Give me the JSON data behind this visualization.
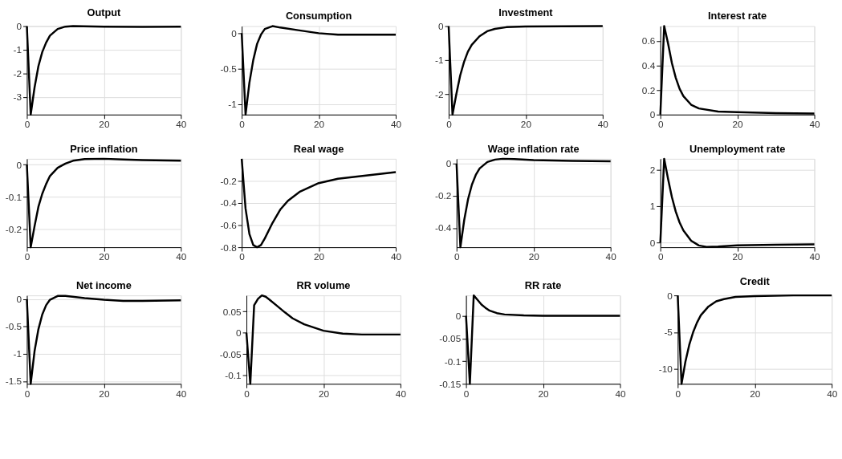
{
  "chart_data": [
    {
      "type": "line",
      "title": "Output",
      "x": [
        0,
        1,
        2,
        3,
        4,
        5,
        6,
        8,
        10,
        12,
        20,
        30,
        40
      ],
      "series": [
        {
          "color": "#000000",
          "values": [
            0,
            -3.75,
            -2.6,
            -1.7,
            -1.1,
            -0.7,
            -0.4,
            -0.12,
            -0.02,
            0,
            -0.02,
            -0.03,
            -0.02
          ]
        }
      ],
      "xlim": [
        0,
        40
      ],
      "xticks": [
        0,
        20,
        40
      ],
      "ylim": [
        -3.75,
        0
      ],
      "yticks": [
        -3,
        -2,
        -1,
        0
      ],
      "grid": true
    },
    {
      "type": "line",
      "title": "Consumption",
      "x": [
        0,
        1,
        2,
        3,
        4,
        5,
        6,
        8,
        10,
        15,
        20,
        25,
        30,
        40
      ],
      "series": [
        {
          "color": "#000000",
          "values": [
            0,
            -1.15,
            -0.7,
            -0.38,
            -0.15,
            -0.02,
            0.06,
            0.1,
            0.08,
            0.04,
            0.0,
            -0.02,
            -0.02,
            -0.02
          ]
        }
      ],
      "xlim": [
        0,
        40
      ],
      "xticks": [
        0,
        20,
        40
      ],
      "ylim": [
        -1.15,
        0.1
      ],
      "yticks": [
        -1,
        -0.5,
        0
      ],
      "grid": true
    },
    {
      "type": "line",
      "title": "Investment",
      "x": [
        0,
        1,
        2,
        3,
        4,
        5,
        6,
        8,
        10,
        12,
        15,
        20,
        40
      ],
      "series": [
        {
          "color": "#000000",
          "values": [
            0,
            -2.6,
            -2.0,
            -1.45,
            -1.05,
            -0.75,
            -0.55,
            -0.3,
            -0.15,
            -0.08,
            -0.03,
            -0.01,
            0
          ]
        }
      ],
      "xlim": [
        0,
        40
      ],
      "xticks": [
        0,
        20,
        40
      ],
      "ylim": [
        -2.6,
        0
      ],
      "yticks": [
        -2,
        -1,
        0
      ],
      "grid": true
    },
    {
      "type": "line",
      "title": "Interest rate",
      "x": [
        0,
        1,
        2,
        3,
        4,
        5,
        6,
        8,
        10,
        15,
        20,
        30,
        40
      ],
      "series": [
        {
          "color": "#000000",
          "values": [
            0,
            0.72,
            0.58,
            0.42,
            0.3,
            0.21,
            0.15,
            0.08,
            0.05,
            0.025,
            0.02,
            0.012,
            0.008
          ]
        }
      ],
      "xlim": [
        0,
        40
      ],
      "xticks": [
        0,
        20,
        40
      ],
      "ylim": [
        0,
        0.72
      ],
      "yticks": [
        0,
        0.2,
        0.4,
        0.6
      ],
      "grid": true
    },
    {
      "type": "line",
      "title": "Price inflation",
      "x": [
        0,
        1,
        2,
        3,
        4,
        5,
        6,
        8,
        10,
        12,
        15,
        20,
        25,
        30,
        40
      ],
      "series": [
        {
          "color": "#000000",
          "values": [
            0,
            -0.255,
            -0.19,
            -0.13,
            -0.09,
            -0.06,
            -0.035,
            -0.01,
            0.003,
            0.012,
            0.017,
            0.018,
            0.016,
            0.014,
            0.012
          ]
        }
      ],
      "xlim": [
        0,
        40
      ],
      "xticks": [
        0,
        20,
        40
      ],
      "ylim": [
        -0.255,
        0.018
      ],
      "yticks": [
        -0.2,
        -0.1,
        0
      ],
      "grid": true
    },
    {
      "type": "line",
      "title": "Real wage",
      "x": [
        0,
        1,
        2,
        3,
        4,
        5,
        6,
        8,
        10,
        12,
        15,
        20,
        25,
        30,
        35,
        40
      ],
      "series": [
        {
          "color": "#000000",
          "values": [
            0,
            -0.45,
            -0.68,
            -0.78,
            -0.8,
            -0.78,
            -0.72,
            -0.58,
            -0.46,
            -0.38,
            -0.3,
            -0.22,
            -0.18,
            -0.16,
            -0.14,
            -0.12
          ]
        }
      ],
      "xlim": [
        0,
        40
      ],
      "xticks": [
        0,
        20,
        40
      ],
      "ylim": [
        -0.8,
        0
      ],
      "yticks": [
        -0.8,
        -0.6,
        -0.4,
        -0.2
      ],
      "grid": true
    },
    {
      "type": "line",
      "title": "Wage inflation rate",
      "x": [
        0,
        1,
        2,
        3,
        4,
        5,
        6,
        8,
        10,
        12,
        15,
        20,
        30,
        40
      ],
      "series": [
        {
          "color": "#000000",
          "values": [
            0,
            -0.52,
            -0.35,
            -0.22,
            -0.13,
            -0.07,
            -0.03,
            0.01,
            0.025,
            0.03,
            0.028,
            0.022,
            0.017,
            0.015
          ]
        }
      ],
      "xlim": [
        0,
        40
      ],
      "xticks": [
        0,
        20,
        40
      ],
      "ylim": [
        -0.52,
        0.03
      ],
      "yticks": [
        -0.4,
        -0.2,
        0
      ],
      "grid": true
    },
    {
      "type": "line",
      "title": "Unemployment rate",
      "x": [
        0,
        1,
        2,
        3,
        4,
        5,
        6,
        8,
        10,
        12,
        15,
        20,
        30,
        40
      ],
      "series": [
        {
          "color": "#000000",
          "values": [
            0,
            2.3,
            1.75,
            1.25,
            0.85,
            0.55,
            0.33,
            0.05,
            -0.08,
            -0.12,
            -0.11,
            -0.08,
            -0.06,
            -0.05
          ]
        }
      ],
      "xlim": [
        0,
        40
      ],
      "xticks": [
        0,
        20,
        40
      ],
      "ylim": [
        -0.13,
        2.3
      ],
      "yticks": [
        0,
        1,
        2
      ],
      "grid": true
    },
    {
      "type": "line",
      "title": "Net income",
      "x": [
        0,
        1,
        2,
        3,
        4,
        5,
        6,
        8,
        10,
        15,
        20,
        25,
        30,
        40
      ],
      "series": [
        {
          "color": "#000000",
          "values": [
            0,
            -1.55,
            -0.95,
            -0.55,
            -0.28,
            -0.11,
            -0.01,
            0.06,
            0.06,
            0.02,
            -0.01,
            -0.03,
            -0.03,
            -0.02
          ]
        }
      ],
      "xlim": [
        0,
        40
      ],
      "xticks": [
        0,
        20,
        40
      ],
      "ylim": [
        -1.55,
        0.07
      ],
      "yticks": [
        -1.5,
        -1,
        -0.5,
        0
      ],
      "grid": true
    },
    {
      "type": "line",
      "title": "RR volume",
      "x": [
        0,
        1,
        2,
        3,
        4,
        5,
        6,
        8,
        10,
        12,
        15,
        20,
        25,
        30,
        40
      ],
      "series": [
        {
          "color": "#000000",
          "values": [
            0,
            -0.12,
            0.065,
            0.08,
            0.088,
            0.085,
            0.078,
            0.063,
            0.048,
            0.034,
            0.02,
            0.005,
            -0.002,
            -0.004,
            -0.004
          ]
        }
      ],
      "xlim": [
        0,
        40
      ],
      "xticks": [
        0,
        20,
        40
      ],
      "ylim": [
        -0.12,
        0.088
      ],
      "yticks": [
        -0.1,
        -0.05,
        0,
        0.05
      ],
      "grid": true
    },
    {
      "type": "line",
      "title": "RR rate",
      "x": [
        0,
        1,
        2,
        3,
        4,
        5,
        6,
        8,
        10,
        15,
        20,
        40
      ],
      "series": [
        {
          "color": "#000000",
          "values": [
            0,
            -0.15,
            0.045,
            0.035,
            0.025,
            0.018,
            0.012,
            0.006,
            0.003,
            0.001,
            0,
            0
          ]
        }
      ],
      "xlim": [
        0,
        40
      ],
      "xticks": [
        0,
        20,
        40
      ],
      "ylim": [
        -0.15,
        0.045
      ],
      "yticks": [
        -0.15,
        -0.1,
        -0.05,
        0
      ],
      "grid": true
    },
    {
      "type": "line",
      "title": "Credit",
      "x": [
        0,
        1,
        2,
        3,
        4,
        5,
        6,
        8,
        10,
        12,
        15,
        20,
        30,
        40
      ],
      "series": [
        {
          "color": "#000000",
          "values": [
            0,
            -12,
            -9,
            -6.7,
            -5,
            -3.7,
            -2.7,
            -1.5,
            -0.8,
            -0.5,
            -0.2,
            -0.1,
            0,
            0
          ]
        }
      ],
      "xlim": [
        0,
        40
      ],
      "xticks": [
        0,
        20,
        40
      ],
      "ylim": [
        -12,
        0
      ],
      "yticks": [
        -10,
        -5,
        0
      ],
      "grid": true
    }
  ]
}
